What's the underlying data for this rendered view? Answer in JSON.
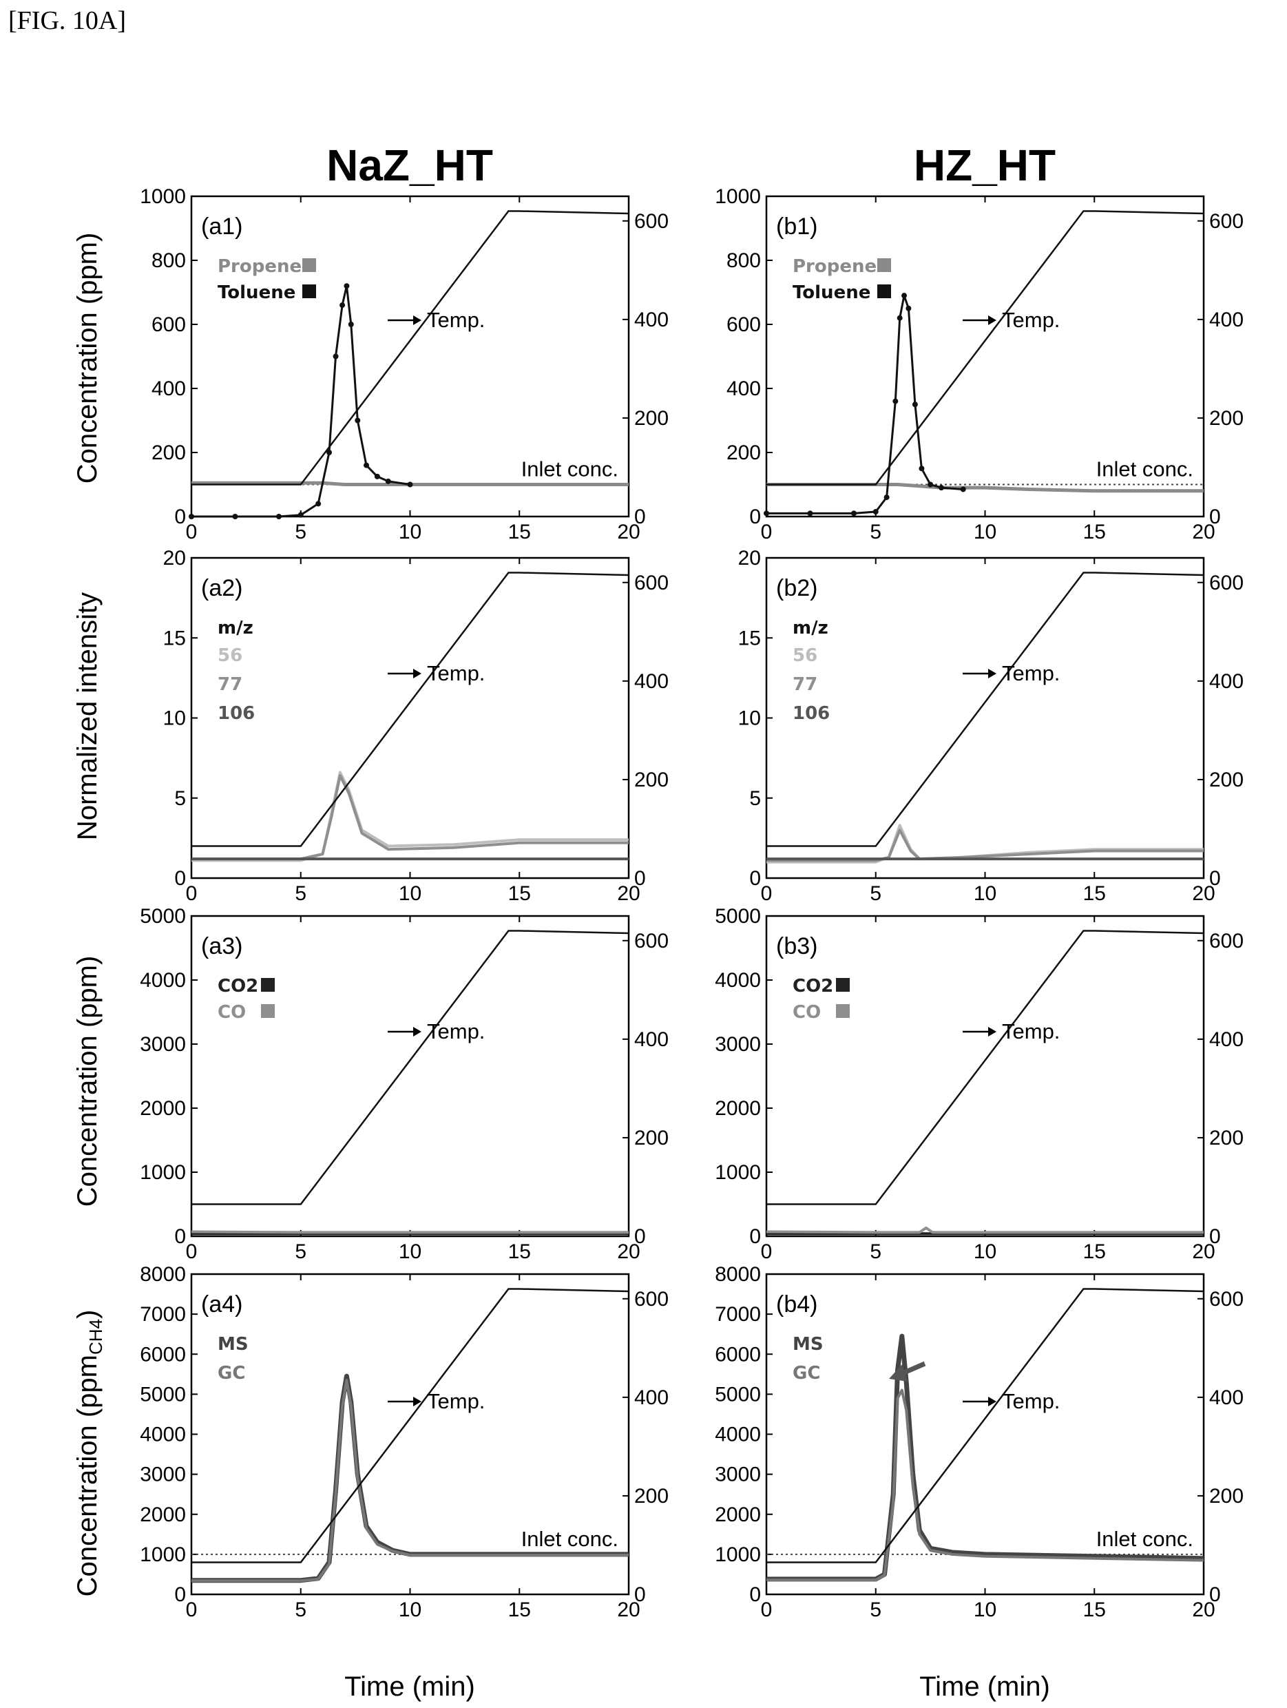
{
  "figure_label": "[FIG. 10A]",
  "column_titles": [
    "NaZ_HT",
    "HZ_HT"
  ],
  "row_ylabels": [
    "Concentration (ppm)",
    "Normalized intensity",
    "Concentration (ppm)",
    "Concentration (ppm",
    "CH4",
    ")"
  ],
  "xlabel": "Time (min)",
  "annotations": {
    "temp": "Temp.",
    "inlet": "Inlet conc."
  },
  "colors": {
    "temp": "#111111",
    "toluene": "#111111",
    "propene": "#8a8a8a",
    "mz56": "#bdbdbd",
    "mz77": "#8f8f8f",
    "mz106": "#555555",
    "co2": "#222222",
    "co": "#8f8f8f",
    "ms": "#444444",
    "gc": "#777777"
  },
  "chart_data": [
    {
      "id": "a1",
      "panel_label": "(a1)",
      "type": "line",
      "xlim": [
        0,
        20
      ],
      "ylim": [
        0,
        1000
      ],
      "y2lim": [
        0,
        650
      ],
      "xticks": [
        "0",
        "5",
        "10",
        "15",
        "20"
      ],
      "yticks": [
        "0",
        "200",
        "400",
        "600",
        "800",
        "1000"
      ],
      "y2ticks": [
        "0",
        "200",
        "400",
        "600"
      ],
      "legend": [
        "Propene",
        "Toluene"
      ],
      "temperature": {
        "x": [
          0,
          5,
          14.5,
          15,
          20
        ],
        "y": [
          65,
          65,
          620,
          620,
          615
        ]
      },
      "inlet_conc": 100,
      "series": [
        {
          "name": "Propene",
          "x": [
            0,
            2,
            4,
            5,
            6,
            7,
            8,
            10,
            12,
            15,
            18,
            20
          ],
          "y": [
            105,
            105,
            105,
            105,
            105,
            100,
            100,
            100,
            100,
            100,
            100,
            100
          ]
        },
        {
          "name": "Toluene",
          "x": [
            0,
            2,
            4,
            5,
            5.8,
            6.3,
            6.6,
            6.9,
            7.1,
            7.3,
            7.6,
            8.0,
            8.5,
            9.0,
            10
          ],
          "y": [
            0,
            0,
            0,
            5,
            40,
            200,
            500,
            660,
            720,
            600,
            300,
            160,
            125,
            110,
            100
          ]
        }
      ]
    },
    {
      "id": "b1",
      "panel_label": "(b1)",
      "type": "line",
      "xlim": [
        0,
        20
      ],
      "ylim": [
        0,
        1000
      ],
      "y2lim": [
        0,
        650
      ],
      "xticks": [
        "0",
        "5",
        "10",
        "15",
        "20"
      ],
      "yticks": [
        "0",
        "200",
        "400",
        "600",
        "800",
        "1000"
      ],
      "y2ticks": [
        "0",
        "200",
        "400",
        "600"
      ],
      "legend": [
        "Propene",
        "Toluene"
      ],
      "temperature": {
        "x": [
          0,
          5,
          14.5,
          15,
          20
        ],
        "y": [
          65,
          65,
          620,
          620,
          615
        ]
      },
      "inlet_conc": 100,
      "series": [
        {
          "name": "Propene",
          "x": [
            0,
            2,
            4,
            5,
            6,
            7,
            8,
            10,
            12,
            15,
            18,
            20
          ],
          "y": [
            100,
            100,
            100,
            100,
            100,
            95,
            90,
            90,
            85,
            80,
            80,
            80
          ]
        },
        {
          "name": "Toluene",
          "x": [
            0,
            2,
            4,
            5,
            5.5,
            5.9,
            6.1,
            6.3,
            6.5,
            6.8,
            7.1,
            7.5,
            8.0,
            9
          ],
          "y": [
            10,
            10,
            10,
            15,
            60,
            360,
            620,
            690,
            650,
            350,
            150,
            100,
            90,
            85
          ]
        }
      ]
    },
    {
      "id": "a2",
      "panel_label": "(a2)",
      "type": "line",
      "xlim": [
        0,
        20
      ],
      "ylim": [
        0,
        20
      ],
      "y2lim": [
        0,
        650
      ],
      "xticks": [
        "0",
        "5",
        "10",
        "15",
        "20"
      ],
      "yticks": [
        "0",
        "5",
        "10",
        "15",
        "20"
      ],
      "y2ticks": [
        "0",
        "200",
        "400",
        "600"
      ],
      "legend_title": "m/z",
      "legend": [
        "56",
        "77",
        "106"
      ],
      "temperature": {
        "x": [
          0,
          5,
          14.5,
          15,
          20
        ],
        "y": [
          65,
          65,
          620,
          620,
          615
        ]
      },
      "series": [
        {
          "name": "56",
          "x": [
            0,
            5,
            6,
            6.4,
            6.8,
            7.2,
            7.8,
            9,
            12,
            15,
            20
          ],
          "y": [
            1.1,
            1.1,
            1.5,
            4.0,
            6.6,
            5.5,
            3.0,
            2.0,
            2.1,
            2.4,
            2.4
          ]
        },
        {
          "name": "77",
          "x": [
            0,
            5,
            6,
            6.4,
            6.8,
            7.2,
            7.8,
            9,
            12,
            15,
            20
          ],
          "y": [
            1.2,
            1.2,
            1.5,
            3.8,
            6.4,
            5.3,
            2.8,
            1.8,
            1.9,
            2.2,
            2.2
          ]
        },
        {
          "name": "106",
          "x": [
            0,
            5,
            10,
            15,
            20
          ],
          "y": [
            1.2,
            1.2,
            1.2,
            1.2,
            1.2
          ]
        }
      ]
    },
    {
      "id": "b2",
      "panel_label": "(b2)",
      "type": "line",
      "xlim": [
        0,
        20
      ],
      "ylim": [
        0,
        20
      ],
      "y2lim": [
        0,
        650
      ],
      "xticks": [
        "0",
        "5",
        "10",
        "15",
        "20"
      ],
      "yticks": [
        "0",
        "5",
        "10",
        "15",
        "20"
      ],
      "y2ticks": [
        "0",
        "200",
        "400",
        "600"
      ],
      "legend_title": "m/z",
      "legend": [
        "56",
        "77",
        "106"
      ],
      "temperature": {
        "x": [
          0,
          5,
          14.5,
          15,
          20
        ],
        "y": [
          65,
          65,
          620,
          620,
          615
        ]
      },
      "series": [
        {
          "name": "56",
          "x": [
            0,
            5,
            5.6,
            6.1,
            6.6,
            7.0,
            9,
            12,
            15,
            20
          ],
          "y": [
            1.0,
            1.0,
            1.3,
            3.3,
            1.8,
            1.2,
            1.3,
            1.6,
            1.8,
            1.8
          ]
        },
        {
          "name": "77",
          "x": [
            0,
            5,
            5.6,
            6.1,
            6.6,
            7.0,
            9,
            12,
            15,
            20
          ],
          "y": [
            1.1,
            1.1,
            1.3,
            3.0,
            1.7,
            1.2,
            1.3,
            1.5,
            1.7,
            1.7
          ]
        },
        {
          "name": "106",
          "x": [
            0,
            5,
            10,
            15,
            20
          ],
          "y": [
            1.2,
            1.2,
            1.2,
            1.2,
            1.2
          ]
        }
      ]
    },
    {
      "id": "a3",
      "panel_label": "(a3)",
      "type": "line",
      "xlim": [
        0,
        20
      ],
      "ylim": [
        0,
        5000
      ],
      "y2lim": [
        0,
        650
      ],
      "xticks": [
        "0",
        "5",
        "10",
        "15",
        "20"
      ],
      "yticks": [
        "0",
        "1000",
        "2000",
        "3000",
        "4000",
        "5000"
      ],
      "y2ticks": [
        "0",
        "200",
        "400",
        "600"
      ],
      "legend": [
        "CO2",
        "CO"
      ],
      "temperature": {
        "x": [
          0,
          5,
          14.5,
          15,
          20
        ],
        "y": [
          65,
          65,
          620,
          620,
          615
        ]
      },
      "series": [
        {
          "name": "CO2",
          "x": [
            0,
            5,
            10,
            15,
            20
          ],
          "y": [
            40,
            40,
            40,
            40,
            40
          ]
        },
        {
          "name": "CO",
          "x": [
            0,
            5,
            10,
            15,
            20
          ],
          "y": [
            70,
            60,
            60,
            60,
            60
          ]
        }
      ]
    },
    {
      "id": "b3",
      "panel_label": "(b3)",
      "type": "line",
      "xlim": [
        0,
        20
      ],
      "ylim": [
        0,
        5000
      ],
      "y2lim": [
        0,
        650
      ],
      "xticks": [
        "0",
        "5",
        "10",
        "15",
        "20"
      ],
      "yticks": [
        "0",
        "1000",
        "2000",
        "3000",
        "4000",
        "5000"
      ],
      "y2ticks": [
        "0",
        "200",
        "400",
        "600"
      ],
      "legend": [
        "CO2",
        "CO"
      ],
      "temperature": {
        "x": [
          0,
          5,
          14.5,
          15,
          20
        ],
        "y": [
          65,
          65,
          620,
          620,
          615
        ]
      },
      "series": [
        {
          "name": "CO2",
          "x": [
            0,
            5,
            10,
            15,
            20
          ],
          "y": [
            40,
            40,
            40,
            40,
            40
          ]
        },
        {
          "name": "CO",
          "x": [
            0,
            5,
            7,
            7.3,
            7.6,
            10,
            15,
            20
          ],
          "y": [
            70,
            60,
            60,
            130,
            60,
            60,
            60,
            60
          ]
        }
      ]
    },
    {
      "id": "a4",
      "panel_label": "(a4)",
      "type": "line",
      "xlim": [
        0,
        20
      ],
      "ylim": [
        0,
        8000
      ],
      "y2lim": [
        0,
        650
      ],
      "xticks": [
        "0",
        "5",
        "10",
        "15",
        "20"
      ],
      "yticks": [
        "0",
        "1000",
        "2000",
        "3000",
        "4000",
        "5000",
        "6000",
        "7000",
        "8000"
      ],
      "y2ticks": [
        "0",
        "200",
        "400",
        "600"
      ],
      "legend": [
        "MS",
        "GC"
      ],
      "temperature": {
        "x": [
          0,
          5,
          14.5,
          15,
          20
        ],
        "y": [
          65,
          65,
          620,
          620,
          615
        ]
      },
      "inlet_conc": 1000,
      "series": [
        {
          "name": "MS",
          "x": [
            0,
            5,
            5.8,
            6.3,
            6.6,
            6.9,
            7.1,
            7.3,
            7.6,
            8.0,
            8.5,
            9.2,
            10,
            15,
            20
          ],
          "y": [
            350,
            350,
            400,
            800,
            2600,
            4800,
            5450,
            4800,
            3000,
            1700,
            1300,
            1100,
            1000,
            1000,
            1000
          ]
        },
        {
          "name": "GC",
          "x": [
            0,
            5,
            5.8,
            6.3,
            6.6,
            6.9,
            7.1,
            7.3,
            7.6,
            8.0,
            8.5,
            9.2,
            10,
            15,
            20
          ],
          "y": [
            340,
            340,
            380,
            760,
            2500,
            4700,
            5350,
            4700,
            2900,
            1650,
            1250,
            1080,
            980,
            980,
            980
          ]
        }
      ]
    },
    {
      "id": "b4",
      "panel_label": "(b4)",
      "type": "line",
      "xlim": [
        0,
        20
      ],
      "ylim": [
        0,
        8000
      ],
      "y2lim": [
        0,
        650
      ],
      "xticks": [
        "0",
        "5",
        "10",
        "15",
        "20"
      ],
      "yticks": [
        "0",
        "1000",
        "2000",
        "3000",
        "4000",
        "5000",
        "6000",
        "7000",
        "8000"
      ],
      "y2ticks": [
        "0",
        "200",
        "400",
        "600"
      ],
      "legend": [
        "MS",
        "GC"
      ],
      "temperature": {
        "x": [
          0,
          5,
          14.5,
          15,
          20
        ],
        "y": [
          65,
          65,
          620,
          620,
          615
        ]
      },
      "inlet_conc": 1000,
      "series": [
        {
          "name": "MS",
          "x": [
            0,
            5,
            5.4,
            5.8,
            6.0,
            6.2,
            6.4,
            6.7,
            7.0,
            7.5,
            8.5,
            10,
            15,
            20
          ],
          "y": [
            380,
            380,
            500,
            2500,
            5600,
            6450,
            5300,
            3000,
            1600,
            1150,
            1050,
            1000,
            950,
            900
          ]
        },
        {
          "name": "GC",
          "x": [
            0,
            5,
            5.4,
            5.8,
            6.0,
            6.2,
            6.4,
            6.7,
            7.0,
            7.5,
            8.5,
            10,
            15,
            20
          ],
          "y": [
            360,
            360,
            480,
            2300,
            4900,
            5100,
            4600,
            2700,
            1500,
            1100,
            1000,
            950,
            900,
            850
          ]
        }
      ]
    }
  ]
}
